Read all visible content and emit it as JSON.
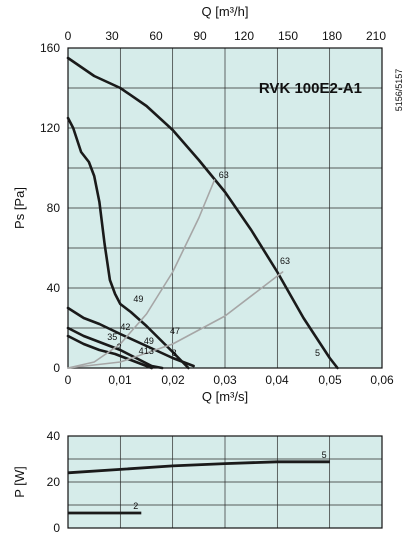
{
  "chart_data": [
    {
      "type": "line",
      "title": "RVK 100E2-A1",
      "side_code": "5156/5157",
      "xlabel": "Q [m³/s]",
      "x2label": "Q [m³/h]",
      "ylabel": "Ps [Pa]",
      "xlim": [
        0,
        0.06
      ],
      "x2lim": [
        0,
        216
      ],
      "ylim": [
        0,
        160
      ],
      "xticks": [
        "0",
        "0,01",
        "0,02",
        "0,03",
        "0,04",
        "0,05",
        "0,06"
      ],
      "x2ticks": [
        "0",
        "30",
        "60",
        "90",
        "120",
        "150",
        "180",
        "210"
      ],
      "yticks": [
        "0",
        "40",
        "80",
        "120",
        "160"
      ],
      "grid": true,
      "background": "#d6ecea",
      "colors": {
        "fan_curve": "#1a1a1a",
        "system_curve": "#a6a6a6"
      },
      "series": [
        {
          "values": [
            [
              0,
              155
            ],
            [
              0.005,
              146
            ],
            [
              0.01,
              140
            ],
            [
              0.015,
              131
            ],
            [
              0.02,
              119
            ],
            [
              0.025,
              104
            ],
            [
              0.03,
              88
            ],
            [
              0.035,
              69
            ],
            [
              0.04,
              48
            ],
            [
              0.045,
              25
            ],
            [
              0.05,
              5
            ],
            [
              0.0515,
              0
            ]
          ]
        },
        {
          "values": [
            [
              0,
              125
            ],
            [
              0.001,
              120
            ],
            [
              0.0025,
              108
            ],
            [
              0.004,
              103
            ],
            [
              0.005,
              96
            ],
            [
              0.006,
              83
            ],
            [
              0.007,
              62
            ],
            [
              0.008,
              44
            ],
            [
              0.009,
              37
            ],
            [
              0.01,
              32
            ],
            [
              0.012,
              28
            ],
            [
              0.015,
              21
            ],
            [
              0.02,
              8
            ],
            [
              0.023,
              0
            ]
          ]
        },
        {
          "values": [
            [
              0,
              30
            ],
            [
              0.003,
              25
            ],
            [
              0.006,
              22
            ],
            [
              0.01,
              17
            ],
            [
              0.015,
              11
            ],
            [
              0.02,
              5
            ],
            [
              0.024,
              1
            ]
          ]
        },
        {
          "values": [
            [
              0,
              20
            ],
            [
              0.003,
              16
            ],
            [
              0.006,
              13
            ],
            [
              0.01,
              9
            ],
            [
              0.013,
              5
            ],
            [
              0.016,
              1
            ],
            [
              0.018,
              0
            ]
          ]
        },
        {
          "values": [
            [
              0,
              16
            ],
            [
              0.003,
              12
            ],
            [
              0.006,
              9
            ],
            [
              0.009,
              7
            ],
            [
              0.012,
              4
            ],
            [
              0.015,
              1
            ],
            [
              0.016,
              0
            ]
          ]
        },
        {
          "values": [
            [
              0,
              0
            ],
            [
              0.005,
              3
            ],
            [
              0.01,
              12
            ],
            [
              0.015,
              27
            ],
            [
              0.02,
              48
            ],
            [
              0.025,
              75
            ],
            [
              0.028,
              94
            ]
          ]
        },
        {
          "values": [
            [
              0,
              0
            ],
            [
              0.01,
              3
            ],
            [
              0.02,
              12
            ],
            [
              0.03,
              26
            ],
            [
              0.04,
              46
            ],
            [
              0.041,
              48
            ]
          ]
        }
      ],
      "labels": [
        {
          "text": "63",
          "x": 0.0288,
          "y": 95
        },
        {
          "text": "63",
          "x": 0.0405,
          "y": 52
        },
        {
          "text": "49",
          "x": 0.0125,
          "y": 33
        },
        {
          "text": "47",
          "x": 0.0195,
          "y": 17
        },
        {
          "text": "42",
          "x": 0.01,
          "y": 19
        },
        {
          "text": "49",
          "x": 0.0145,
          "y": 12
        },
        {
          "text": "35",
          "x": 0.0075,
          "y": 14
        },
        {
          "text": "2",
          "x": 0.0093,
          "y": 9
        },
        {
          "text": "8",
          "x": 0.0198,
          "y": 6
        },
        {
          "text": "4",
          "x": 0.0135,
          "y": 7
        },
        {
          "text": "13",
          "x": 0.0145,
          "y": 7
        },
        {
          "text": "5",
          "x": 0.0472,
          "y": 6
        }
      ]
    },
    {
      "type": "line",
      "ylabel": "P [W]",
      "xlim": [
        0,
        0.06
      ],
      "ylim": [
        0,
        40
      ],
      "yticks": [
        "0",
        "20",
        "40"
      ],
      "grid": true,
      "background": "#d6ecea",
      "series": [
        {
          "name": "5",
          "values": [
            [
              0,
              24
            ],
            [
              0.01,
              25.5
            ],
            [
              0.02,
              27
            ],
            [
              0.03,
              28
            ],
            [
              0.04,
              28.8
            ],
            [
              0.05,
              28.8
            ]
          ]
        },
        {
          "name": "2",
          "values": [
            [
              0,
              6.5
            ],
            [
              0.014,
              6.5
            ]
          ]
        }
      ]
    }
  ]
}
